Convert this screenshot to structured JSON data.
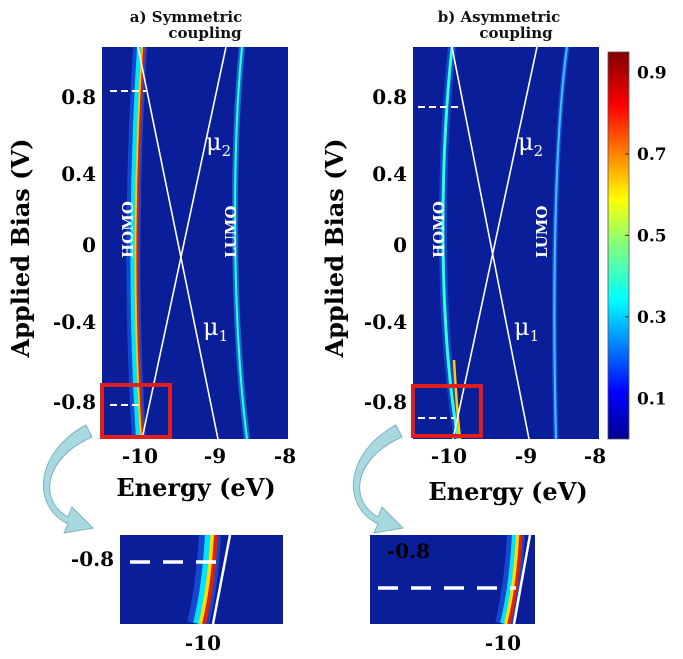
{
  "chart_data": [
    {
      "type": "heatmap",
      "title": "a) Symmetric coupling",
      "title_lines": [
        "a) Symmetric",
        "coupling"
      ],
      "xlabel": "Energy (eV)",
      "ylabel": "Applied Bias (V)",
      "xlim": [
        -10.6,
        -8.0
      ],
      "ylim": [
        -1.0,
        1.0
      ],
      "x_ticks": [
        "-10",
        "-9",
        "-8"
      ],
      "y_ticks": [
        "0.8",
        "0.4",
        "0",
        "-0.4",
        "-0.8"
      ],
      "annotations": {
        "homo": "HOMO",
        "lumo": "LUMO",
        "mu1": "μ",
        "mu1_sub": "1",
        "mu2": "μ",
        "mu2_sub": "2"
      },
      "features": {
        "homo_peak": [
          {
            "bias": -1.0,
            "energy": -10.0
          },
          {
            "bias": 0.0,
            "energy": -10.15
          },
          {
            "bias": 1.0,
            "energy": -10.3
          }
        ],
        "lumo_peak": [
          {
            "bias": -1.0,
            "energy": -8.6
          },
          {
            "bias": 0.0,
            "energy": -8.75
          },
          {
            "bias": 1.0,
            "energy": -8.62
          }
        ],
        "mu1": [
          {
            "bias": -1.0,
            "energy": -8.95
          },
          {
            "bias": 1.0,
            "energy": -10.2
          }
        ],
        "mu2": [
          {
            "bias": -1.0,
            "energy": -10.25
          },
          {
            "bias": 1.0,
            "energy": -8.95
          }
        ],
        "marked_bias": [
          0.82,
          -0.82
        ]
      },
      "inset": {
        "x_tick": "-10",
        "y_tick": "-0.8",
        "marked_bias": -0.82
      }
    },
    {
      "type": "heatmap",
      "title": "b) Asymmetric coupling",
      "title_lines": [
        "b) Asymmetric",
        "coupling"
      ],
      "xlabel": "Energy (eV)",
      "ylabel": "Applied Bias (V)",
      "xlim": [
        -10.6,
        -8.0
      ],
      "ylim": [
        -1.0,
        1.0
      ],
      "x_ticks": [
        "-10",
        "-9",
        "-8"
      ],
      "y_ticks": [
        "0.8",
        "0.4",
        "0",
        "-0.4",
        "-0.8"
      ],
      "annotations": {
        "homo": "HOMO",
        "lumo": "LUMO",
        "mu1": "μ",
        "mu1_sub": "1",
        "mu2": "μ",
        "mu2_sub": "2"
      },
      "features": {
        "homo_peak": [
          {
            "bias": -1.0,
            "energy": -9.95
          },
          {
            "bias": 0.0,
            "energy": -10.25
          },
          {
            "bias": 1.0,
            "energy": -10.3
          }
        ],
        "lumo_peak": [
          {
            "bias": -1.0,
            "energy": -8.6
          },
          {
            "bias": 0.0,
            "energy": -8.78
          },
          {
            "bias": 1.0,
            "energy": -8.55
          }
        ],
        "mu1": [
          {
            "bias": -1.0,
            "energy": -8.95
          },
          {
            "bias": 1.0,
            "energy": -10.15
          }
        ],
        "mu2": [
          {
            "bias": -1.0,
            "energy": -10.25
          },
          {
            "bias": 1.0,
            "energy": -8.95
          }
        ],
        "marked_bias": [
          0.72,
          -0.92
        ]
      },
      "inset": {
        "x_tick": "-10",
        "y_tick": "-0.8",
        "marked_bias": -0.92
      }
    }
  ],
  "colorbar": {
    "ticks": [
      "0.9",
      "0.7",
      "0.5",
      "0.3",
      "0.1"
    ],
    "tick_values": [
      0.9,
      0.7,
      0.5,
      0.3,
      0.1
    ],
    "range": [
      0,
      0.95
    ],
    "colormap": "jet"
  },
  "colors": {
    "background": "#0a1e9a",
    "highlight_box": "#e01e1e",
    "arrow": "#a8d8e0"
  }
}
